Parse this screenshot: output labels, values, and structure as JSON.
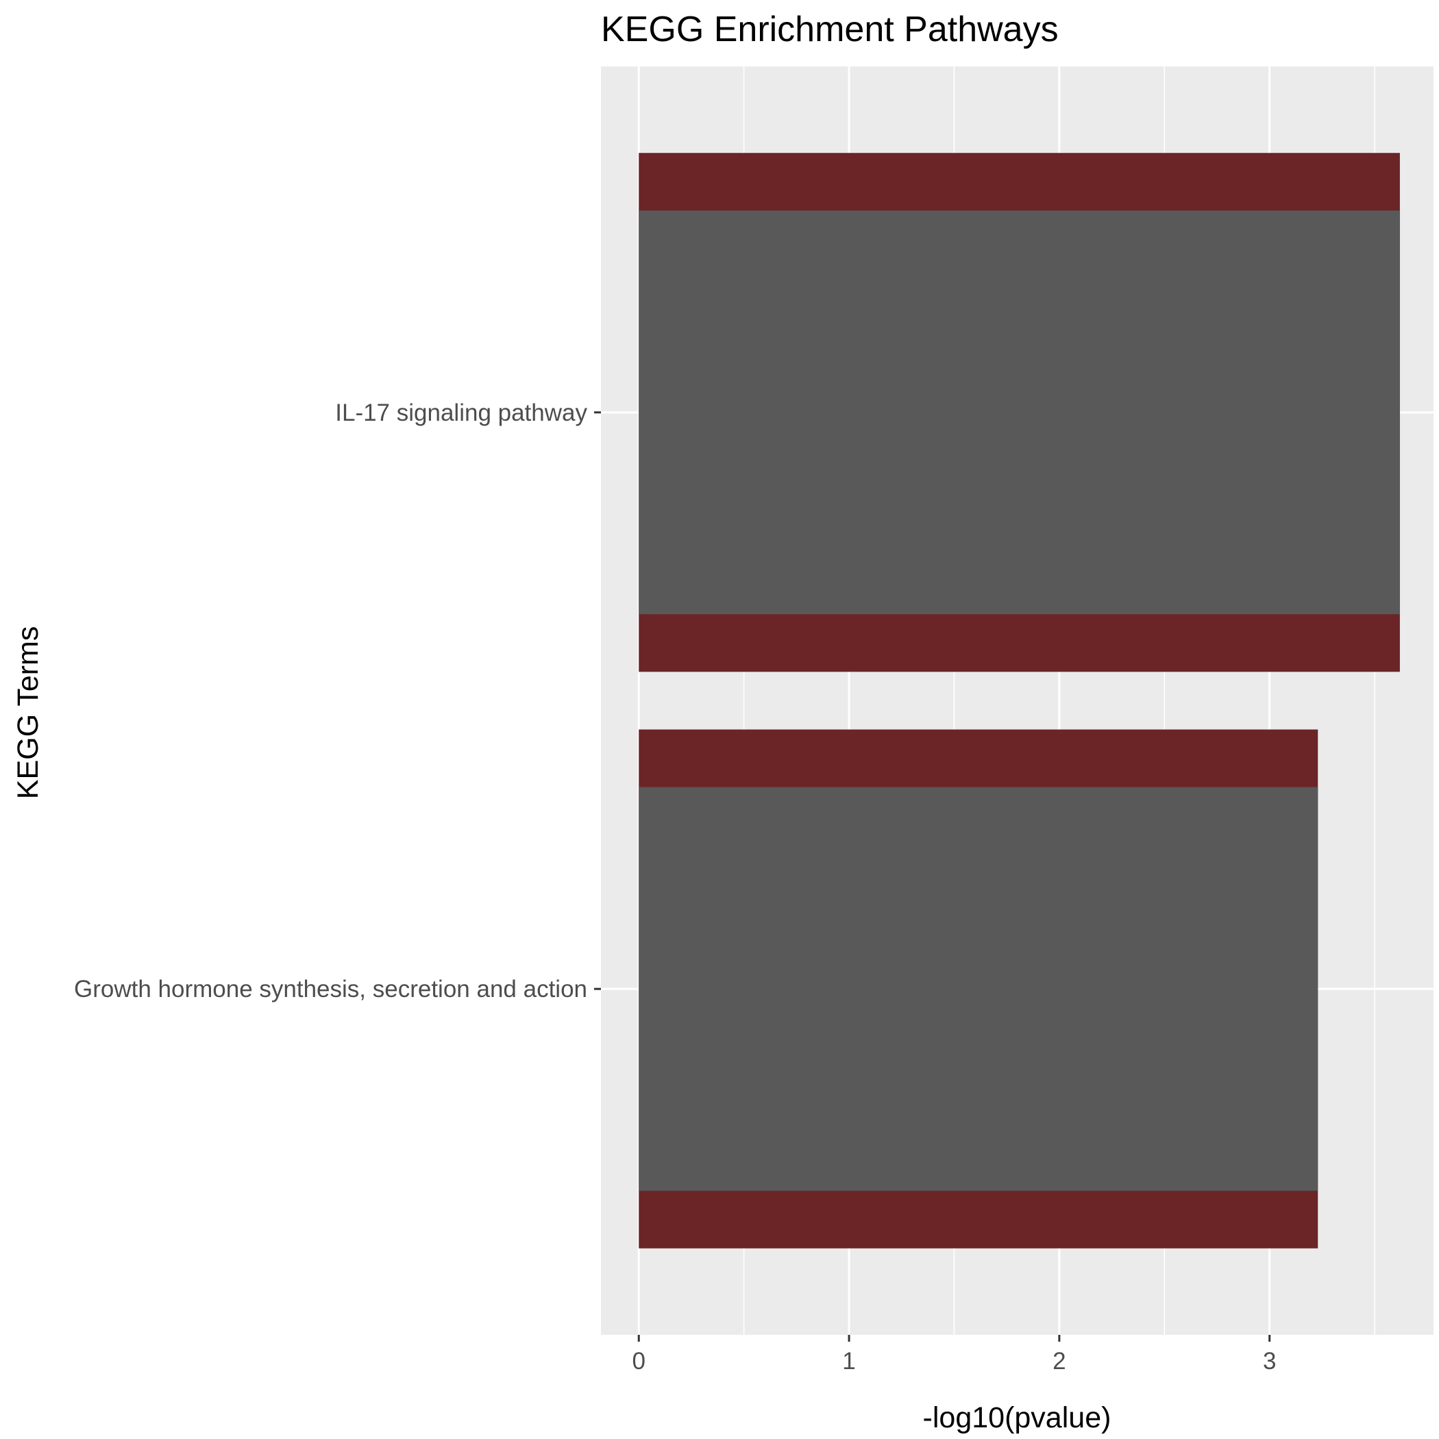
{
  "chart_data": {
    "type": "bar",
    "orientation": "horizontal",
    "title": "KEGG Enrichment Pathways",
    "xlabel": "-log10(pvalue)",
    "ylabel": "KEGG Terms",
    "categories": [
      "IL-17 signaling pathway",
      "Growth hormone synthesis, secretion and action"
    ],
    "values": [
      3.62,
      3.23
    ],
    "xlim": [
      -0.18,
      3.78
    ],
    "x_ticks": [
      0,
      1,
      2,
      3
    ],
    "grid": true,
    "colors": {
      "panel_background": "#ebebeb",
      "grid_line": "#ffffff",
      "bar_fill": "#595959",
      "bar_band": "#6b2526",
      "tick": "#333333"
    }
  }
}
